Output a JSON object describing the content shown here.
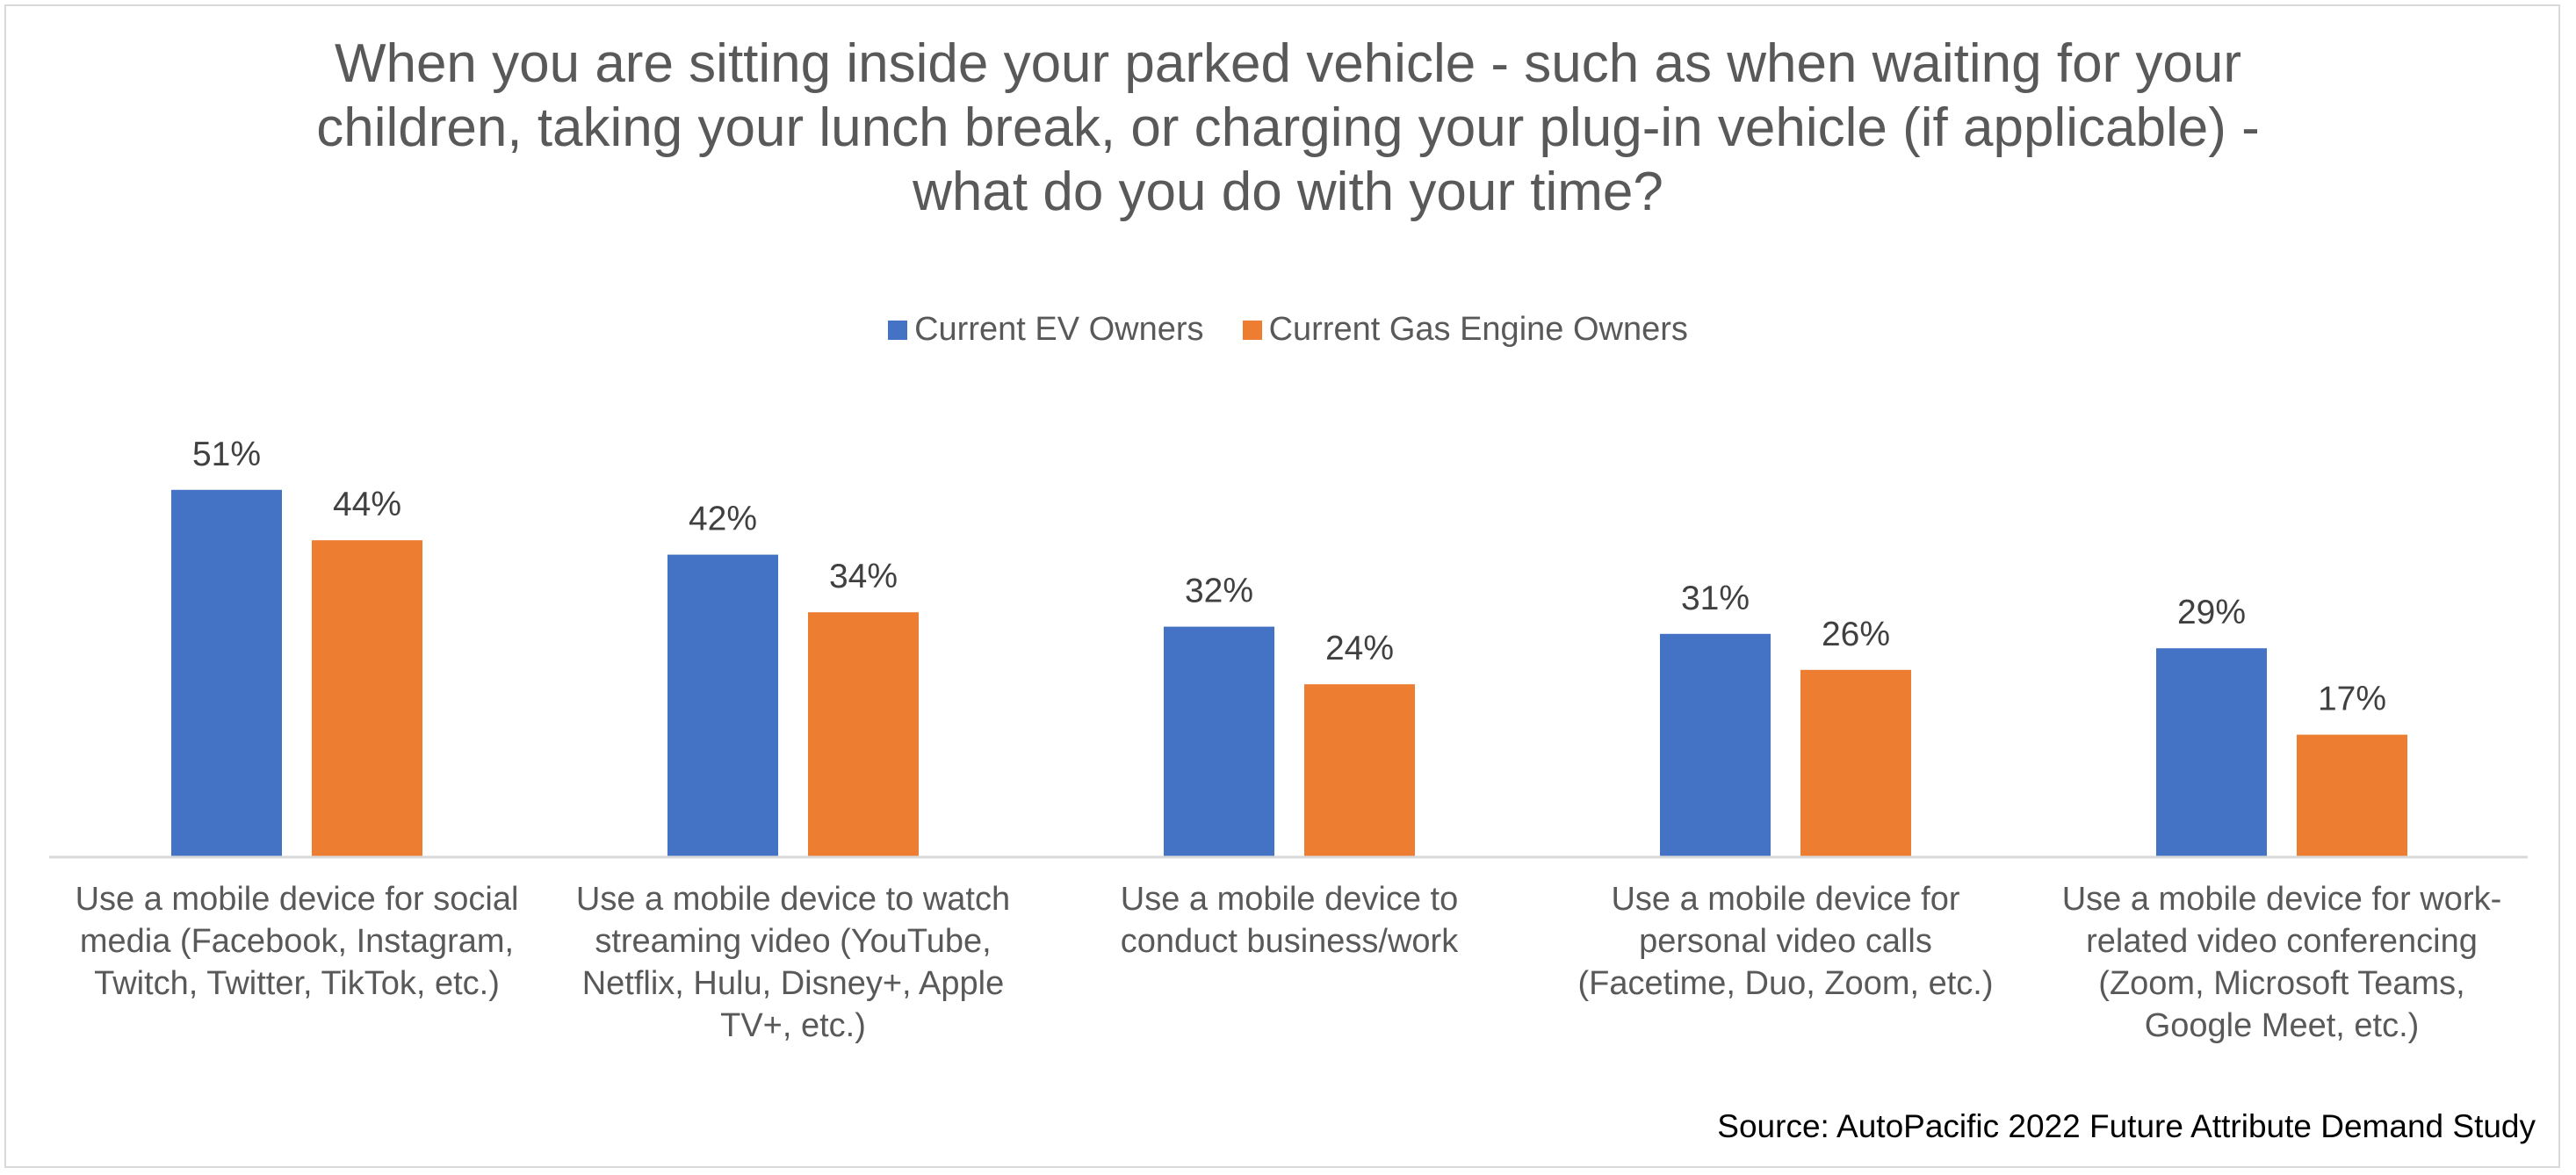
{
  "chart_data": {
    "type": "bar",
    "title_lines": [
      "When you are sitting inside your parked vehicle - such as when waiting for your",
      "children, taking your lunch break, or charging your plug-in vehicle (if applicable) -",
      "what do you do with your time?"
    ],
    "title": "When you are sitting inside your parked vehicle - such as when waiting for your children, taking your lunch break, or charging your plug-in vehicle (if applicable) - what do you do with your time?",
    "categories": [
      "Use a mobile device for social media (Facebook, Instagram, Twitch, Twitter, TikTok, etc.)",
      "Use a mobile device to watch streaming video (YouTube, Netflix, Hulu, Disney+, Apple TV+, etc.)",
      "Use a mobile device to conduct business/work",
      "Use a mobile device for personal video calls (Facetime, Duo, Zoom, etc.)",
      "Use a mobile device for work-related video conferencing (Zoom, Microsoft Teams, Google Meet, etc.)"
    ],
    "category_label_lines": [
      [
        "Use a mobile device for social",
        "media (Facebook, Instagram,",
        "Twitch, Twitter, TikTok, etc.)"
      ],
      [
        "Use a mobile device to watch",
        "streaming video (YouTube,",
        "Netflix, Hulu, Disney+, Apple",
        "TV+, etc.)"
      ],
      [
        "Use a mobile device to",
        "conduct business/work"
      ],
      [
        "Use a mobile device for",
        "personal video calls",
        "(Facetime, Duo, Zoom, etc.)"
      ],
      [
        "Use a mobile device for work-",
        "related video conferencing",
        "(Zoom, Microsoft Teams,",
        "Google Meet, etc.)"
      ]
    ],
    "series": [
      {
        "name": "Current EV Owners",
        "color": "#4472C4",
        "values": [
          51,
          42,
          32,
          31,
          29
        ],
        "labels": [
          "51%",
          "42%",
          "32%",
          "31%",
          "29%"
        ]
      },
      {
        "name": "Current Gas Engine Owners",
        "color": "#ED7D31",
        "values": [
          44,
          34,
          24,
          26,
          17
        ],
        "labels": [
          "44%",
          "34%",
          "24%",
          "26%",
          "17%"
        ]
      }
    ],
    "xlabel": "",
    "ylabel": "",
    "ylim": [
      0,
      60
    ],
    "value_format": "percent",
    "grid": false,
    "legend_position": "top-center",
    "source": "Source: AutoPacific 2022 Future Attribute Demand Study"
  }
}
